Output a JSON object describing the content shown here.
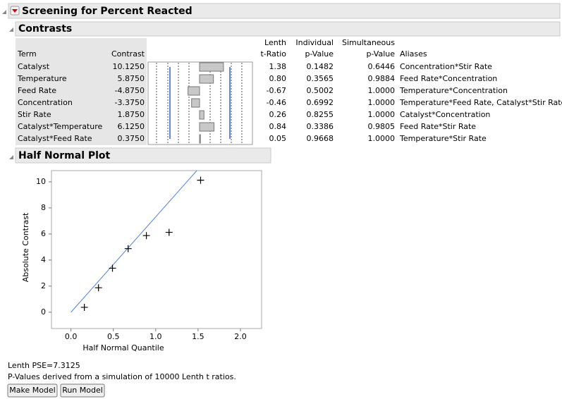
{
  "header": {
    "title": "Screening for Percent Reacted"
  },
  "contrasts": {
    "title": "Contrasts",
    "columns": [
      [
        "Term"
      ],
      [
        "Contrast"
      ],
      [
        "Lenth",
        "t-Ratio"
      ],
      [
        "Individual",
        "p-Value"
      ],
      [
        "Simultaneous",
        "p-Value"
      ],
      [
        "Aliases"
      ]
    ],
    "rows": [
      {
        "term": "Catalyst",
        "contrast": {
          "value": 10.125,
          "label": "10.1250"
        },
        "t_ratio": "1.38",
        "p_individual": "0.1482",
        "p_simultaneous": "0.6446",
        "aliases": "Concentration*Stir Rate"
      },
      {
        "term": "Temperature",
        "contrast": {
          "value": 5.875,
          "label": "5.8750"
        },
        "t_ratio": "0.80",
        "p_individual": "0.3565",
        "p_simultaneous": "0.9884",
        "aliases": "Feed Rate*Concentration"
      },
      {
        "term": "Feed Rate",
        "contrast": {
          "value": -4.875,
          "label": "-4.8750"
        },
        "t_ratio": "-0.67",
        "p_individual": "0.5002",
        "p_simultaneous": "1.0000",
        "aliases": "Temperature*Concentration"
      },
      {
        "term": "Concentration",
        "contrast": {
          "value": -3.375,
          "label": "-3.3750"
        },
        "t_ratio": "-0.46",
        "p_individual": "0.6992",
        "p_simultaneous": "1.0000",
        "aliases": "Temperature*Feed Rate, Catalyst*Stir Rate"
      },
      {
        "term": "Stir Rate",
        "contrast": {
          "value": 1.875,
          "label": "1.8750"
        },
        "t_ratio": "0.26",
        "p_individual": "0.8255",
        "p_simultaneous": "1.0000",
        "aliases": "Catalyst*Concentration"
      },
      {
        "term": "Catalyst*Temperature",
        "contrast": {
          "value": 6.125,
          "label": "6.1250"
        },
        "t_ratio": "0.84",
        "p_individual": "0.3386",
        "p_simultaneous": "0.9805",
        "aliases": "Feed Rate*Stir Rate"
      },
      {
        "term": "Catalyst*Feed Rate",
        "contrast": {
          "value": 0.375,
          "label": "0.3750"
        },
        "t_ratio": "0.05",
        "p_individual": "0.9668",
        "p_simultaneous": "1.0000",
        "aliases": "Temperature*Stir Rate"
      }
    ]
  },
  "half_normal_plot": {
    "title": "Half Normal Plot",
    "chart_data": {
      "type": "scatter",
      "x_label": "Half Normal Quantile",
      "y_label": "Absolute Contrast",
      "x": [
        0.158,
        0.325,
        0.49,
        0.675,
        0.89,
        1.158,
        1.53
      ],
      "values": [
        0.375,
        1.875,
        3.375,
        4.875,
        5.875,
        6.125,
        10.125
      ],
      "xlim": [
        -0.23,
        2.25
      ],
      "ylim": [
        -1.25,
        10.86
      ],
      "xticks": [
        {
          "value": 0,
          "label": "0.0"
        },
        {
          "value": 0.5,
          "label": "0.5"
        },
        {
          "value": 1,
          "label": "1.0"
        },
        {
          "value": 1.5,
          "label": "1.5"
        },
        {
          "value": 2,
          "label": "2.0"
        }
      ],
      "yticks": [
        0,
        2,
        4,
        6,
        8,
        10
      ],
      "line_color": "#4f81d4"
    }
  },
  "footer": {
    "lenth_pse": {
      "value": 7.3125,
      "label": "Lenth PSE=7.3125"
    },
    "note": "P-Values derived from a simulation of 10000 Lenth t ratios.",
    "buttons": [
      "Make Model",
      "Run Model"
    ]
  }
}
